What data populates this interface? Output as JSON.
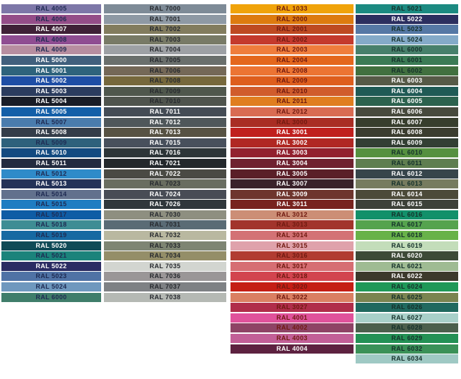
{
  "chart_data": {
    "type": "table",
    "description_colors": {
      "white_text": "#FFFFFF"
    },
    "columns": [
      {
        "id": "violet-blue-column",
        "dark_text": "#1E2A52",
        "swatches": [
          [
            "RAL 4005",
            "#7D77A8",
            "d"
          ],
          [
            "RAL 4006",
            "#944D88",
            "d"
          ],
          [
            "RAL 4007",
            "#3F2137",
            "w"
          ],
          [
            "RAL 4008",
            "#8F4D92",
            "d"
          ],
          [
            "RAL 4009",
            "#B78EA0",
            "d"
          ],
          [
            "RAL 5000",
            "#41607D",
            "w"
          ],
          [
            "RAL 5001",
            "#2E637C",
            "w"
          ],
          [
            "RAL 5002",
            "#1E4EA5",
            "w"
          ],
          [
            "RAL 5003",
            "#2B3C5E",
            "w"
          ],
          [
            "RAL 5004",
            "#191D27",
            "w"
          ],
          [
            "RAL 5005",
            "#135FA8",
            "w"
          ],
          [
            "RAL 5007",
            "#4A7CAD",
            "d"
          ],
          [
            "RAL 5008",
            "#343D49",
            "w"
          ],
          [
            "RAL 5009",
            "#2E617C",
            "d"
          ],
          [
            "RAL 5010",
            "#134A80",
            "w"
          ],
          [
            "RAL 5011",
            "#222B3F",
            "w"
          ],
          [
            "RAL 5012",
            "#2F8BC9",
            "d"
          ],
          [
            "RAL 5013",
            "#233258",
            "w"
          ],
          [
            "RAL 5014",
            "#62718D",
            "d"
          ],
          [
            "RAL 5015",
            "#1F7DC2",
            "d"
          ],
          [
            "RAL 5017",
            "#0F5CA5",
            "d"
          ],
          [
            "RAL 5018",
            "#3E8D94",
            "d"
          ],
          [
            "RAL 5019",
            "#1769A2",
            "d"
          ],
          [
            "RAL 5020",
            "#104B57",
            "w"
          ],
          [
            "RAL 5021",
            "#1B837B",
            "d"
          ],
          [
            "RAL 5022",
            "#2B2C63",
            "w"
          ],
          [
            "RAL 5023",
            "#4F72A5",
            "d"
          ],
          [
            "RAL 5024",
            "#6F98BE",
            "d"
          ],
          [
            "RAL 6000",
            "#3F7D6A",
            "d"
          ]
        ]
      },
      {
        "id": "grey-column",
        "dark_text": "#26292E",
        "swatches": [
          [
            "RAL 7000",
            "#7E8B97",
            "d"
          ],
          [
            "RAL 7001",
            "#8E99A4",
            "d"
          ],
          [
            "RAL 7002",
            "#827C5E",
            "d"
          ],
          [
            "RAL 7003",
            "#787A66",
            "d"
          ],
          [
            "RAL 7004",
            "#9DA0A4",
            "d"
          ],
          [
            "RAL 7005",
            "#6A6F6C",
            "d"
          ],
          [
            "RAL 7006",
            "#746857",
            "d"
          ],
          [
            "RAL 7008",
            "#76683C",
            "d"
          ],
          [
            "RAL 7009",
            "#4F574C",
            "d"
          ],
          [
            "RAL 7010",
            "#4F544D",
            "d"
          ],
          [
            "RAL 7011",
            "#444C55",
            "w"
          ],
          [
            "RAL 7012",
            "#4F575A",
            "w"
          ],
          [
            "RAL 7013",
            "#575243",
            "w"
          ],
          [
            "RAL 7015",
            "#48505C",
            "w"
          ],
          [
            "RAL 7016",
            "#2D3538",
            "w"
          ],
          [
            "RAL 7021",
            "#23282C",
            "w"
          ],
          [
            "RAL 7022",
            "#4A4A44",
            "w"
          ],
          [
            "RAL 7023",
            "#696D60",
            "d"
          ],
          [
            "RAL 7024",
            "#484C55",
            "w"
          ],
          [
            "RAL 7026",
            "#30373C",
            "w"
          ],
          [
            "RAL 7030",
            "#8E8F80",
            "d"
          ],
          [
            "RAL 7031",
            "#5A6B75",
            "d"
          ],
          [
            "RAL 7032",
            "#B9B8A0",
            "d"
          ],
          [
            "RAL 7033",
            "#7E8573",
            "d"
          ],
          [
            "RAL 7034",
            "#948E68",
            "d"
          ],
          [
            "RAL 7035",
            "#D2D5D0",
            "d"
          ],
          [
            "RAL 7036",
            "#9A9697",
            "d"
          ],
          [
            "RAL 7037",
            "#7E8184",
            "d"
          ],
          [
            "RAL 7038",
            "#B5B9B4",
            "d"
          ]
        ]
      },
      {
        "id": "red-orange-column",
        "dark_text": "#701A10",
        "swatches": [
          [
            "RAL 1033",
            "#F0A30A",
            "d"
          ],
          [
            "RAL 2000",
            "#DD7B0F",
            "d"
          ],
          [
            "RAL 2001",
            "#BE4A22",
            "d"
          ],
          [
            "RAL 2002",
            "#C43A2D",
            "d"
          ],
          [
            "RAL 2003",
            "#EF7D3C",
            "d"
          ],
          [
            "RAL 2004",
            "#E4671D",
            "d"
          ],
          [
            "RAL 2008",
            "#EC7433",
            "d"
          ],
          [
            "RAL 2009",
            "#DE5E1D",
            "d"
          ],
          [
            "RAL 2010",
            "#D05C2C",
            "d"
          ],
          [
            "RAL 2011",
            "#E07E20",
            "d"
          ],
          [
            "RAL 2012",
            "#D96B52",
            "d"
          ],
          [
            "RAL 3000",
            "#A92D24",
            "d"
          ],
          [
            "RAL 3001",
            "#C0201E",
            "w"
          ],
          [
            "RAL 3002",
            "#B02823",
            "w"
          ],
          [
            "RAL 3003",
            "#92212E",
            "w"
          ],
          [
            "RAL 3004",
            "#6F2230",
            "w"
          ],
          [
            "RAL 3005",
            "#5A1F28",
            "w"
          ],
          [
            "RAL 3007",
            "#39222A",
            "w"
          ],
          [
            "RAL 3009",
            "#6E352E",
            "w"
          ],
          [
            "RAL 3011",
            "#78231F",
            "w"
          ],
          [
            "RAL 3012",
            "#CC8E76",
            "d"
          ],
          [
            "RAL 3013",
            "#A2342C",
            "d"
          ],
          [
            "RAL 3014",
            "#D37275",
            "d"
          ],
          [
            "RAL 3015",
            "#DFA2AB",
            "d"
          ],
          [
            "RAL 3016",
            "#B13C31",
            "d"
          ],
          [
            "RAL 3017",
            "#D66E73",
            "d"
          ],
          [
            "RAL 3018",
            "#D2444E",
            "d"
          ],
          [
            "RAL 3020",
            "#C41E14",
            "d"
          ],
          [
            "RAL 3022",
            "#DA7F62",
            "d"
          ],
          [
            "RAL 3027",
            "#B02D4A",
            "d"
          ],
          [
            "RAL 4001",
            "#E0529B",
            "d"
          ],
          [
            "RAL 4002",
            "#8E4365",
            "d"
          ],
          [
            "RAL 4003",
            "#C25F97",
            "d"
          ],
          [
            "RAL 4004",
            "#5D2240",
            "w"
          ]
        ]
      },
      {
        "id": "green-teal-column",
        "dark_text": "#14302A",
        "swatches": [
          [
            "RAL 5021",
            "#1B8A81",
            "d"
          ],
          [
            "RAL 5022",
            "#2B2E5F",
            "w"
          ],
          [
            "RAL 5023",
            "#5578A5",
            "d"
          ],
          [
            "RAL 5024",
            "#84AAC8",
            "d"
          ],
          [
            "RAL 6000",
            "#47806B",
            "d"
          ],
          [
            "RAL 6001",
            "#3B7B55",
            "d"
          ],
          [
            "RAL 6002",
            "#41703F",
            "d"
          ],
          [
            "RAL 6003",
            "#565A47",
            "w"
          ],
          [
            "RAL 6004",
            "#1F5A55",
            "w"
          ],
          [
            "RAL 6005",
            "#2C624E",
            "w"
          ],
          [
            "RAL 6006",
            "#474A3D",
            "w"
          ],
          [
            "RAL 6007",
            "#373E2D",
            "w"
          ],
          [
            "RAL 6008",
            "#3B3D2F",
            "w"
          ],
          [
            "RAL 6009",
            "#333F34",
            "w"
          ],
          [
            "RAL 6010",
            "#55903F",
            "d"
          ],
          [
            "RAL 6011",
            "#5F7E50",
            "d"
          ],
          [
            "RAL 6012",
            "#37454B",
            "w"
          ],
          [
            "RAL 6013",
            "#767B5F",
            "d"
          ],
          [
            "RAL 6014",
            "#4C4A39",
            "w"
          ],
          [
            "RAL 6015",
            "#3D4139",
            "w"
          ],
          [
            "RAL 6016",
            "#12906A",
            "d"
          ],
          [
            "RAL 6017",
            "#55A34E",
            "d"
          ],
          [
            "RAL 6018",
            "#68B249",
            "d"
          ],
          [
            "RAL 6019",
            "#C3DDBA",
            "d"
          ],
          [
            "RAL 6020",
            "#3D4A37",
            "w"
          ],
          [
            "RAL 6021",
            "#9FBB93",
            "d"
          ],
          [
            "RAL 6022",
            "#3C392C",
            "w"
          ],
          [
            "RAL 6024",
            "#1F9858",
            "d"
          ],
          [
            "RAL 6025",
            "#7A8450",
            "d"
          ],
          [
            "RAL 6026",
            "#20695F",
            "d"
          ],
          [
            "RAL 6027",
            "#A8D0C9",
            "d"
          ],
          [
            "RAL 6028",
            "#4B5F4C",
            "d"
          ],
          [
            "RAL 6029",
            "#239155",
            "d"
          ],
          [
            "RAL 6032",
            "#3A9158",
            "d"
          ],
          [
            "RAL 6034",
            "#9FC9C4",
            "d"
          ]
        ]
      }
    ]
  }
}
